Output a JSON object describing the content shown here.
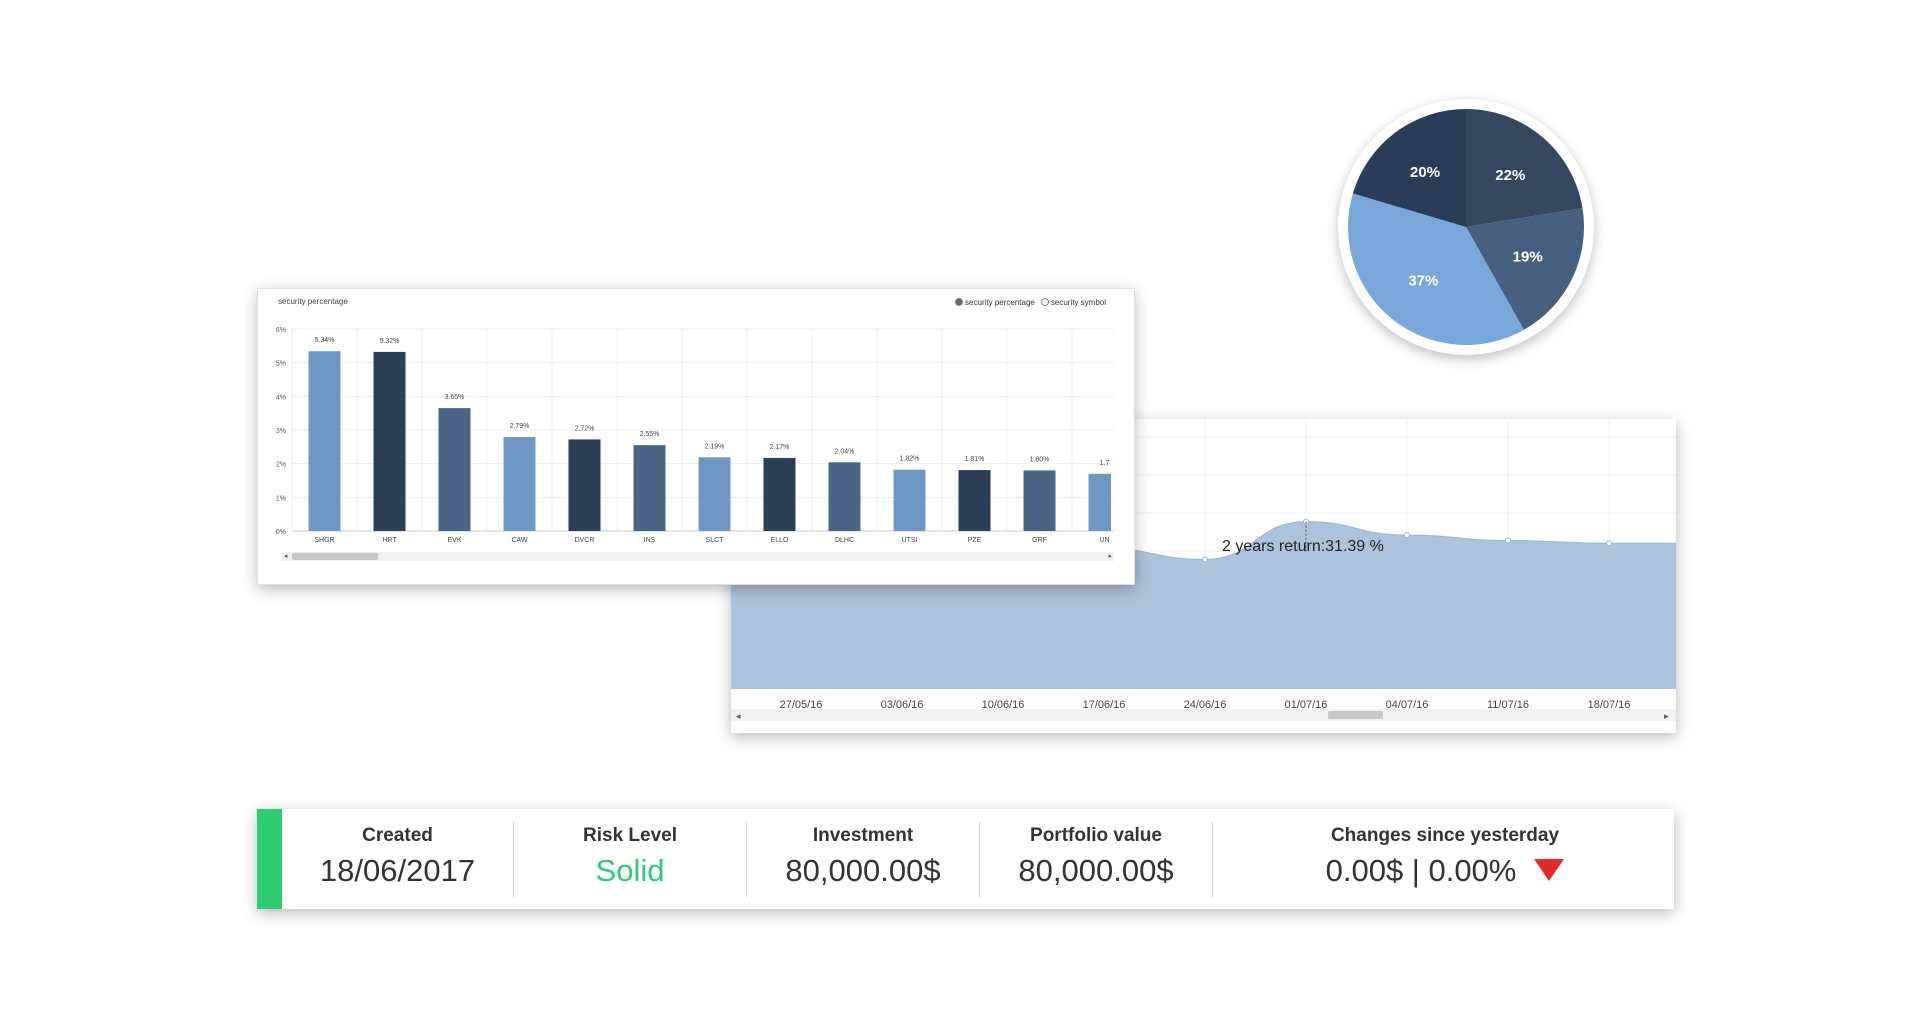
{
  "bar_panel": {
    "title": "security percentage",
    "legend": [
      {
        "label": "security percentage",
        "active": true
      },
      {
        "label": "security symbol",
        "active": false
      }
    ]
  },
  "area_panel": {
    "tooltip": "2 years return:31.39 %"
  },
  "stats": {
    "created_label": "Created",
    "created_value": "18/06/2017",
    "risk_label": "Risk Level",
    "risk_value": "Solid",
    "investment_label": "Investment",
    "investment_value": "80,000.00$",
    "portfolio_label": "Portfolio value",
    "portfolio_value": "80,000.00$",
    "changes_label": "Changes since yesterday",
    "changes_value": "0.00$ | 0.00%",
    "accent_color": "#2ecc71",
    "down_color": "#e02b2b",
    "down_icon": "down-triangle-icon"
  },
  "chart_data": [
    {
      "type": "bar",
      "title": "security percentage",
      "categories": [
        "SHGR",
        "HRT",
        "EVK",
        "CAW",
        "DVCR",
        "INS",
        "SLCT",
        "ELLO",
        "DLHC",
        "UTSI",
        "PZE",
        "GRF",
        "UN"
      ],
      "values": [
        5.34,
        5.32,
        3.65,
        2.79,
        2.72,
        2.55,
        2.19,
        2.17,
        2.04,
        1.82,
        1.81,
        1.8,
        1.7
      ],
      "labels": [
        "5.34%",
        "5.32%",
        "3.65%",
        "2.79%",
        "2.72%",
        "2.55%",
        "2.19%",
        "2.17%",
        "2.04%",
        "1.82%",
        "1.81%",
        "1.80%",
        "1.7"
      ],
      "colors": [
        "#6f97c4",
        "#2c3e55",
        "#4a6586",
        "#6f97c4",
        "#2c3e55",
        "#4a6586",
        "#6f97c4",
        "#2c3e55",
        "#4a6586",
        "#6f97c4",
        "#2c3e55",
        "#4a6586",
        "#6f97c4"
      ],
      "ylim": [
        0,
        6
      ],
      "yticks": [
        "0%",
        "1%",
        "2%",
        "3%",
        "4%",
        "5%",
        "6%"
      ],
      "grid": true
    },
    {
      "type": "area",
      "x": [
        "27/05/16",
        "03/06/16",
        "10/06/16",
        "17/06/16",
        "24/06/16",
        "01/07/16",
        "04/07/16",
        "11/07/16",
        "18/07/16"
      ],
      "values": [
        66,
        63,
        58,
        52,
        48,
        62,
        57,
        55,
        54
      ],
      "ylim": [
        0,
        100
      ],
      "color": "#adc2dd"
    },
    {
      "type": "pie",
      "labels": [
        "22%",
        "19%",
        "37%",
        "20%"
      ],
      "values": [
        22,
        19,
        37,
        20
      ],
      "colors": [
        "#34475f",
        "#47607f",
        "#7aa7da",
        "#2b3c58"
      ]
    }
  ]
}
